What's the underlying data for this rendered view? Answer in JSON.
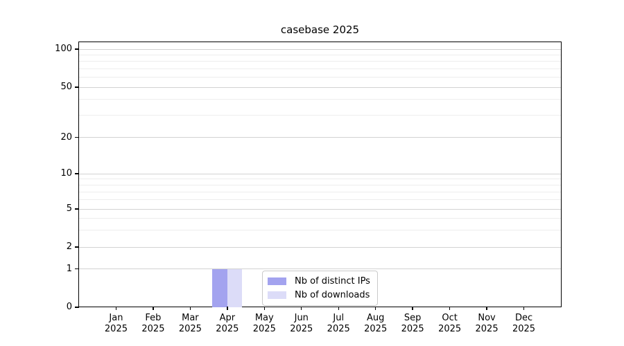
{
  "chart_data": {
    "type": "bar",
    "title": "casebase 2025",
    "categories": [
      "Jan",
      "Feb",
      "Mar",
      "Apr",
      "May",
      "Jun",
      "Jul",
      "Aug",
      "Sep",
      "Oct",
      "Nov",
      "Dec"
    ],
    "year": "2025",
    "series": [
      {
        "name": "Nb of distinct IPs",
        "color": "#a3a3ef",
        "values": [
          0,
          0,
          0,
          1,
          0,
          0,
          0,
          0,
          0,
          0,
          0,
          0
        ]
      },
      {
        "name": "Nb of downloads",
        "color": "#dcdcf8",
        "values": [
          0,
          0,
          0,
          1,
          0,
          0,
          0,
          0,
          0,
          0,
          0,
          0
        ]
      }
    ],
    "yscale": "log-like (linear below 1)",
    "ylim": [
      0,
      100
    ],
    "yticks": [
      0,
      1,
      2,
      5,
      10,
      20,
      50,
      100
    ],
    "y_minor_ticks": [
      3,
      4,
      6,
      7,
      8,
      9,
      30,
      40,
      60,
      70,
      80,
      90
    ],
    "grid": "horizontal",
    "legend_position": "inside bottom-center",
    "colors": {
      "axis": "#000000",
      "major_grid": "#d2d2d2",
      "minor_grid": "#ededed",
      "background": "#ffffff"
    }
  }
}
